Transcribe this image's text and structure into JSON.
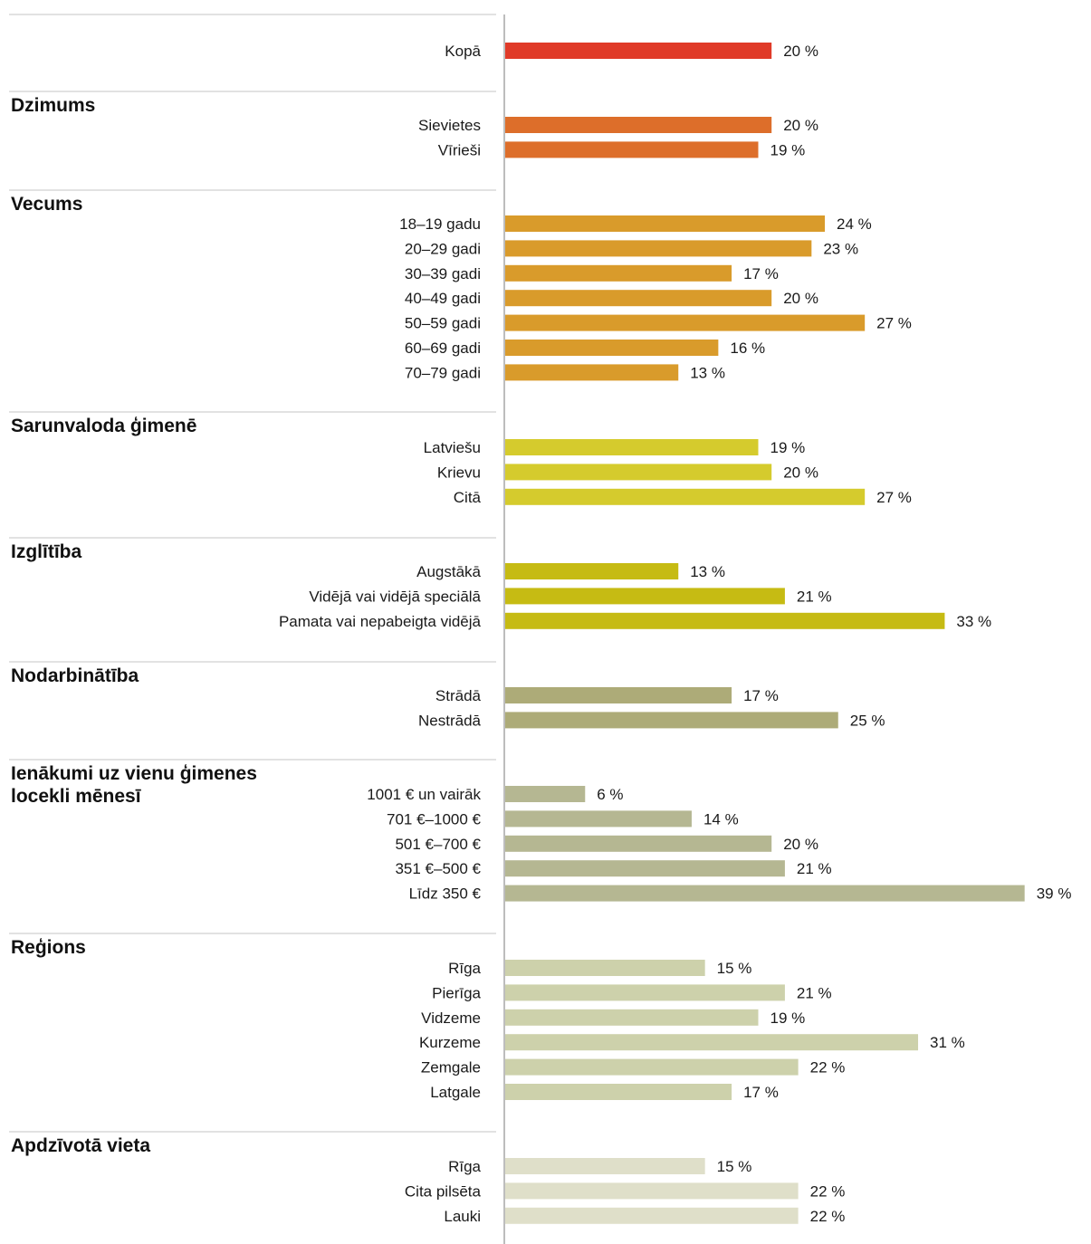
{
  "chart_data": {
    "type": "bar",
    "orientation": "horizontal",
    "unit": "%",
    "value_suffix": " %",
    "xlim": [
      0,
      39
    ],
    "grid": false,
    "legend": "none",
    "groups": [
      {
        "title": "",
        "color": "#e03a28",
        "categories": [
          "Kopā"
        ],
        "values": [
          20
        ]
      },
      {
        "title": "Dzimums",
        "color": "#dd6e2a",
        "categories": [
          "Sievietes",
          "Vīrieši"
        ],
        "values": [
          20,
          19
        ]
      },
      {
        "title": "Vecums",
        "color": "#d99b2b",
        "categories": [
          "18–19 gadu",
          "20–29 gadi",
          "30–39 gadi",
          "40–49 gadi",
          "50–59 gadi",
          "60–69 gadi",
          "70–79 gadi"
        ],
        "values": [
          24,
          23,
          17,
          20,
          27,
          16,
          13
        ]
      },
      {
        "title": "Sarunvaloda ģimenē",
        "color": "#d5cb2d",
        "categories": [
          "Latviešu",
          "Krievu",
          "Citā"
        ],
        "values": [
          19,
          20,
          27
        ]
      },
      {
        "title": "Izglītība",
        "color": "#c6bb13",
        "categories": [
          "Augstākā",
          "Vidējā vai vidējā speciālā",
          "Pamata vai nepabeigta vidējā"
        ],
        "values": [
          13,
          21,
          33
        ]
      },
      {
        "title": "Nodarbinātība",
        "color": "#adab78",
        "categories": [
          "Strādā",
          "Nestrādā"
        ],
        "values": [
          17,
          25
        ]
      },
      {
        "title": "Ienākumi uz vienu ģimenes",
        "title_line2": "locekli mēnesī",
        "color": "#b5b792",
        "categories": [
          "1001 € un vairāk",
          "701 €–1000 €",
          "501 €–700 €",
          "351 €–500 €",
          "Līdz 350 €"
        ],
        "values": [
          6,
          14,
          20,
          21,
          39
        ]
      },
      {
        "title": "Reģions",
        "color": "#cdd1ab",
        "categories": [
          "Rīga",
          "Pierīga",
          "Vidzeme",
          "Kurzeme",
          "Zemgale",
          "Latgale"
        ],
        "values": [
          15,
          21,
          19,
          31,
          22,
          17
        ]
      },
      {
        "title": "Apdzīvotā vieta",
        "color": "#dfdfc9",
        "categories": [
          "Rīga",
          "Cita pilsēta",
          "Lauki"
        ],
        "values": [
          15,
          22,
          22
        ]
      }
    ]
  }
}
